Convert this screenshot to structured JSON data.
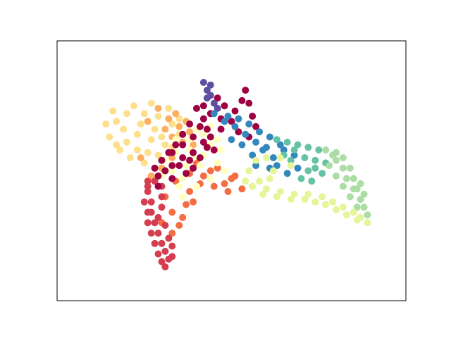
{
  "chart_data": {
    "type": "scatter",
    "title": "",
    "xlabel": "",
    "ylabel": "",
    "xticks": [],
    "yticks": [],
    "grid": false,
    "legend": "none",
    "xlim": [
      0,
      100
    ],
    "ylim": [
      0,
      100
    ],
    "marker_size": 5,
    "series": [
      {
        "color": "#fee08b",
        "points": [
          [
            16,
            73
          ],
          [
            20,
            72
          ],
          [
            25,
            72
          ],
          [
            29,
            71
          ],
          [
            33,
            68
          ],
          [
            35,
            64
          ],
          [
            33,
            59
          ],
          [
            29,
            56
          ],
          [
            25,
            53
          ],
          [
            21,
            55
          ],
          [
            18,
            58
          ],
          [
            15,
            63
          ],
          [
            14,
            68
          ],
          [
            19,
            66
          ],
          [
            23,
            64
          ],
          [
            27,
            62
          ],
          [
            30,
            63
          ],
          [
            24,
            68
          ],
          [
            20,
            61
          ],
          [
            26,
            57
          ],
          [
            31,
            60
          ],
          [
            28,
            66
          ],
          [
            23,
            58
          ],
          [
            17,
            69
          ],
          [
            22,
            75
          ],
          [
            27,
            76
          ],
          [
            32,
            74
          ],
          [
            35,
            70
          ],
          [
            17,
            60
          ]
        ]
      },
      {
        "color": "#fdae61",
        "points": [
          [
            29,
            74
          ],
          [
            34,
            72
          ],
          [
            37,
            69
          ],
          [
            38,
            65
          ],
          [
            36,
            61
          ],
          [
            33,
            55
          ],
          [
            30,
            51
          ],
          [
            27,
            48
          ],
          [
            24,
            55
          ],
          [
            31,
            66
          ],
          [
            35,
            67
          ],
          [
            32,
            70
          ],
          [
            26,
            69
          ],
          [
            33,
            63
          ],
          [
            39,
            60
          ]
        ]
      },
      {
        "color": "#f46d43",
        "points": [
          [
            40,
            53
          ],
          [
            44,
            50
          ],
          [
            50,
            47
          ],
          [
            53,
            43
          ],
          [
            49,
            42
          ],
          [
            45,
            44
          ],
          [
            41,
            45
          ],
          [
            38,
            42
          ],
          [
            37,
            37
          ],
          [
            36,
            32
          ],
          [
            33,
            34
          ],
          [
            31,
            40
          ],
          [
            34,
            46
          ],
          [
            38,
            49
          ],
          [
            42,
            48
          ],
          [
            46,
            51
          ],
          [
            51,
            48
          ],
          [
            48,
            45
          ],
          [
            39,
            38
          ],
          [
            35,
            29
          ],
          [
            33,
            26
          ],
          [
            30,
            30
          ]
        ]
      },
      {
        "color": "#d53e4f",
        "points": [
          [
            26,
            46
          ],
          [
            26,
            42
          ],
          [
            27,
            38
          ],
          [
            27,
            34
          ],
          [
            28,
            30
          ],
          [
            29,
            26
          ],
          [
            30,
            22
          ],
          [
            31,
            19
          ],
          [
            32,
            16
          ],
          [
            31,
            13
          ],
          [
            30,
            15
          ],
          [
            29,
            18
          ],
          [
            28,
            22
          ],
          [
            27,
            26
          ],
          [
            26,
            30
          ],
          [
            26,
            34
          ],
          [
            25,
            38
          ],
          [
            26,
            44
          ],
          [
            28,
            46
          ],
          [
            30,
            44
          ],
          [
            30,
            40
          ],
          [
            30,
            36
          ],
          [
            29,
            32
          ],
          [
            31,
            29
          ],
          [
            32,
            24
          ],
          [
            33,
            21
          ],
          [
            33,
            17
          ]
        ]
      },
      {
        "color": "#9e0142",
        "points": [
          [
            46,
            78
          ],
          [
            48,
            75
          ],
          [
            51,
            73
          ],
          [
            53,
            77
          ],
          [
            54,
            81
          ],
          [
            55,
            76
          ],
          [
            56,
            71
          ],
          [
            57,
            67
          ],
          [
            55,
            63
          ],
          [
            52,
            65
          ],
          [
            50,
            69
          ],
          [
            47,
            70
          ],
          [
            44,
            72
          ],
          [
            47,
            66
          ],
          [
            42,
            75
          ]
        ]
      },
      {
        "color": "#5e4fa2",
        "points": [
          [
            42,
            84
          ],
          [
            43,
            81
          ],
          [
            44,
            79
          ],
          [
            45,
            76
          ],
          [
            46,
            74
          ],
          [
            43,
            78
          ],
          [
            44,
            83
          ]
        ]
      },
      {
        "color": "#3288bd",
        "points": [
          [
            45,
            72
          ],
          [
            48,
            69
          ],
          [
            51,
            67
          ],
          [
            54,
            64
          ],
          [
            57,
            61
          ],
          [
            59,
            58
          ],
          [
            62,
            55
          ],
          [
            64,
            60
          ],
          [
            61,
            63
          ],
          [
            58,
            65
          ],
          [
            55,
            68
          ],
          [
            52,
            70
          ],
          [
            49,
            71
          ],
          [
            60,
            59
          ],
          [
            63,
            52
          ],
          [
            66,
            49
          ],
          [
            69,
            51
          ],
          [
            68,
            56
          ],
          [
            65,
            58
          ],
          [
            57,
            52
          ],
          [
            61,
            51
          ],
          [
            50,
            62
          ],
          [
            53,
            60
          ],
          [
            56,
            56
          ]
        ]
      },
      {
        "color": "#66c2a5",
        "points": [
          [
            63,
            62
          ],
          [
            66,
            61
          ],
          [
            69,
            60
          ],
          [
            72,
            59
          ],
          [
            75,
            58
          ],
          [
            74,
            54
          ],
          [
            72,
            50
          ],
          [
            70,
            47
          ],
          [
            73,
            46
          ],
          [
            76,
            49
          ],
          [
            77,
            53
          ],
          [
            71,
            55
          ],
          [
            67,
            54
          ],
          [
            65,
            56
          ],
          [
            68,
            58
          ],
          [
            74,
            51
          ]
        ]
      },
      {
        "color": "#abdda4",
        "points": [
          [
            77,
            58
          ],
          [
            80,
            57
          ],
          [
            82,
            55
          ],
          [
            84,
            51
          ],
          [
            85,
            47
          ],
          [
            86,
            43
          ],
          [
            87,
            39
          ],
          [
            88,
            36
          ],
          [
            89,
            33
          ],
          [
            86,
            36
          ],
          [
            84,
            40
          ],
          [
            82,
            44
          ],
          [
            80,
            48
          ],
          [
            78,
            52
          ],
          [
            80,
            54
          ],
          [
            83,
            47
          ],
          [
            85,
            43
          ],
          [
            87,
            45
          ],
          [
            88,
            41
          ],
          [
            82,
            51
          ],
          [
            79,
            56
          ]
        ]
      },
      {
        "color": "#e6f598",
        "points": [
          [
            56,
            44
          ],
          [
            60,
            43
          ],
          [
            64,
            42
          ],
          [
            68,
            41
          ],
          [
            72,
            41
          ],
          [
            76,
            40
          ],
          [
            79,
            38
          ],
          [
            82,
            36
          ],
          [
            85,
            34
          ],
          [
            87,
            32
          ],
          [
            89,
            30
          ],
          [
            86,
            31
          ],
          [
            83,
            33
          ],
          [
            80,
            35
          ],
          [
            77,
            37
          ],
          [
            74,
            38
          ],
          [
            71,
            39
          ],
          [
            67,
            39
          ],
          [
            63,
            40
          ],
          [
            59,
            41
          ],
          [
            58,
            46
          ],
          [
            57,
            54
          ],
          [
            60,
            55
          ],
          [
            62,
            50
          ],
          [
            64,
            55
          ],
          [
            67,
            52
          ],
          [
            55,
            50
          ],
          [
            54,
            46
          ],
          [
            61,
            47
          ]
        ]
      },
      {
        "color": "#ffffbf",
        "points": [
          [
            34,
            62
          ],
          [
            38,
            58
          ],
          [
            42,
            56
          ],
          [
            46,
            53
          ],
          [
            48,
            50
          ],
          [
            44,
            47
          ],
          [
            40,
            44
          ],
          [
            36,
            47
          ],
          [
            33,
            50
          ],
          [
            31,
            54
          ],
          [
            34,
            57
          ],
          [
            38,
            62
          ],
          [
            42,
            64
          ],
          [
            46,
            62
          ],
          [
            47,
            58
          ],
          [
            44,
            60
          ],
          [
            41,
            52
          ],
          [
            37,
            52
          ],
          [
            35,
            44
          ],
          [
            30,
            48
          ],
          [
            40,
            66
          ],
          [
            44,
            67
          ],
          [
            39,
            55
          ],
          [
            36,
            40
          ]
        ]
      },
      {
        "color": "#9e0142",
        "points": [
          [
            40,
            74
          ],
          [
            42,
            70
          ],
          [
            43,
            66
          ],
          [
            42,
            61
          ],
          [
            39,
            57
          ],
          [
            36,
            55
          ],
          [
            33,
            52
          ],
          [
            31,
            50
          ],
          [
            29,
            48
          ],
          [
            28,
            51
          ],
          [
            30,
            54
          ],
          [
            33,
            57
          ],
          [
            36,
            60
          ],
          [
            39,
            63
          ],
          [
            41,
            67
          ],
          [
            38,
            68
          ],
          [
            36,
            64
          ],
          [
            34,
            60
          ],
          [
            32,
            57
          ],
          [
            35,
            52
          ],
          [
            37,
            49
          ],
          [
            39,
            51
          ],
          [
            41,
            55
          ],
          [
            43,
            59
          ],
          [
            44,
            63
          ],
          [
            45,
            58
          ],
          [
            38,
            54
          ],
          [
            33,
            47
          ],
          [
            29,
            44
          ]
        ]
      }
    ]
  }
}
